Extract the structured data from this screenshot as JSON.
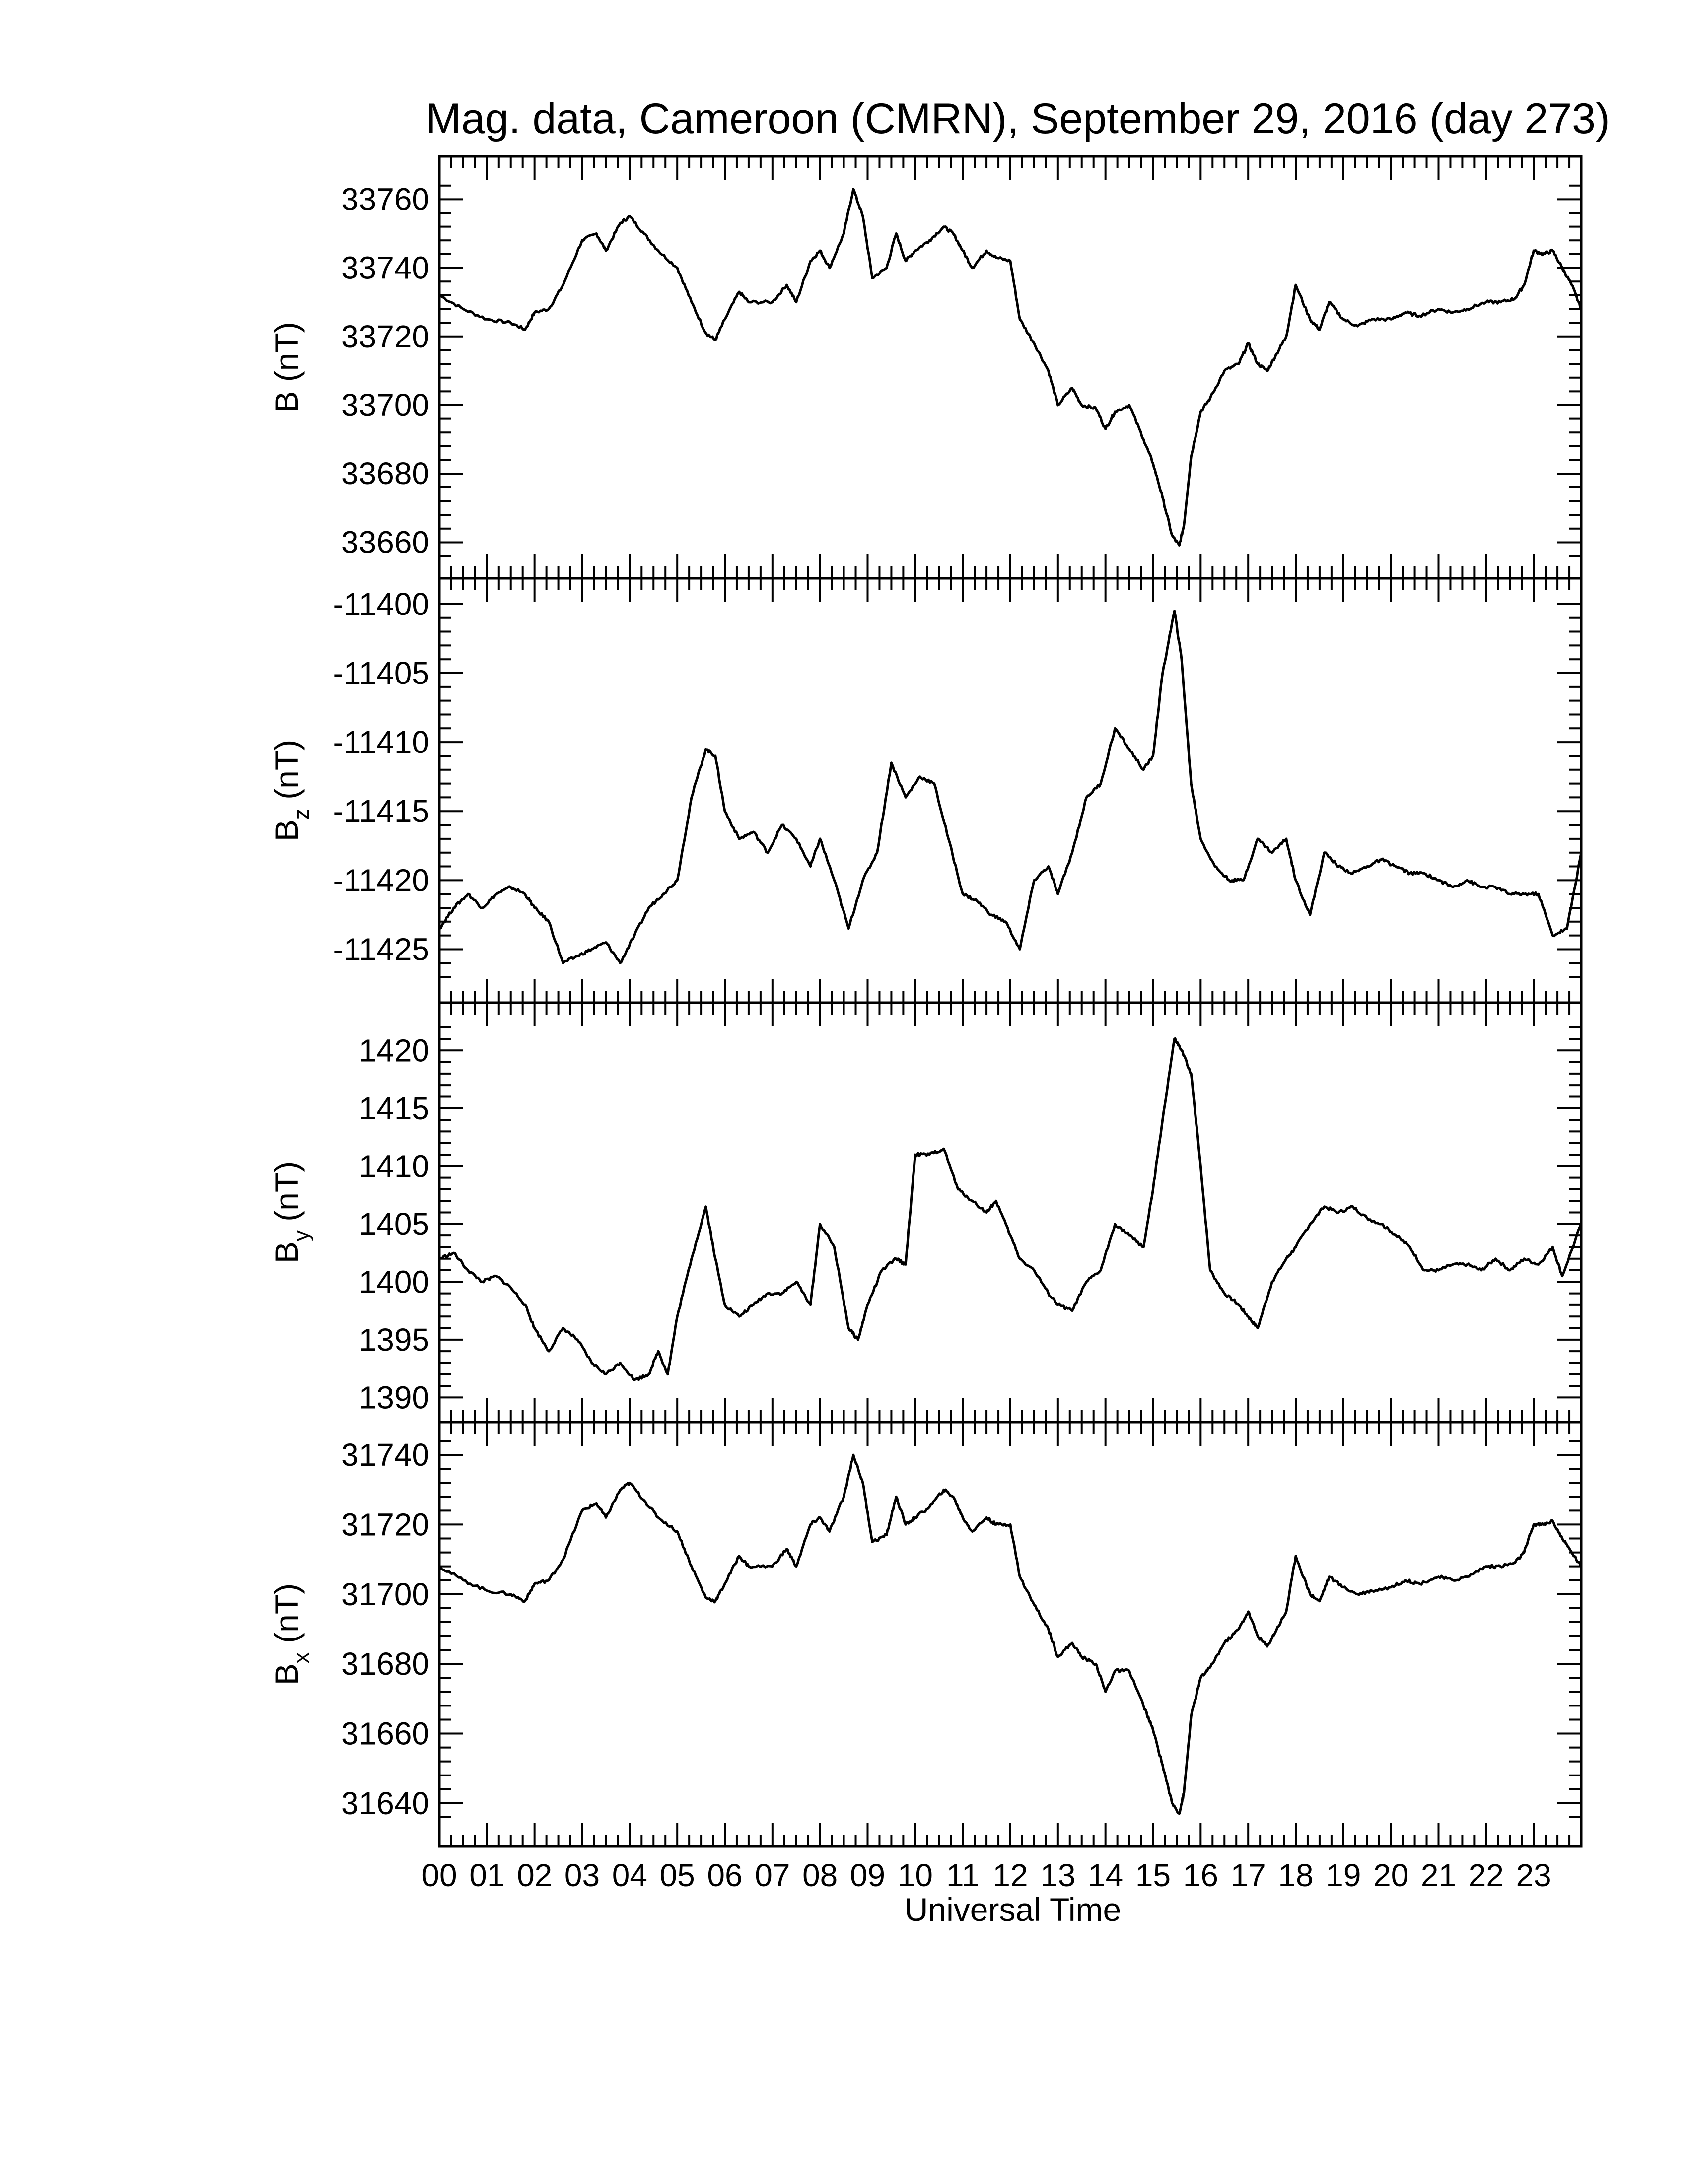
{
  "chart_data": {
    "type": "line",
    "title": "Mag. data, Cameroon (CMRN), September 29, 2016 (day 273)",
    "xlabel": "Universal Time",
    "x_unit": "hours UT",
    "xlim": [
      0,
      24
    ],
    "x_tick_labels": [
      "00",
      "01",
      "02",
      "03",
      "04",
      "05",
      "06",
      "07",
      "08",
      "09",
      "10",
      "11",
      "12",
      "13",
      "14",
      "15",
      "16",
      "17",
      "18",
      "19",
      "20",
      "21",
      "22",
      "23"
    ],
    "panels": [
      {
        "id": "B",
        "ylabel": "B (nT)",
        "ylabel_main": "B",
        "ylabel_sub": "",
        "ylabel_unit": "(nT)",
        "ylim": [
          33655,
          33767
        ],
        "yticks": [
          33660,
          33680,
          33700,
          33720,
          33740,
          33760
        ],
        "x": [
          0,
          0.5,
          1,
          1.5,
          1.8,
          2,
          2.3,
          2.6,
          3,
          3.3,
          3.5,
          3.8,
          4,
          4.3,
          4.6,
          5,
          5.3,
          5.6,
          5.8,
          6,
          6.3,
          6.5,
          7,
          7.3,
          7.5,
          7.8,
          8,
          8.2,
          8.5,
          8.7,
          8.9,
          9.1,
          9.4,
          9.6,
          9.8,
          10,
          10.3,
          10.6,
          10.8,
          11,
          11.2,
          11.5,
          11.7,
          12,
          12.2,
          12.5,
          12.8,
          13,
          13.3,
          13.5,
          13.8,
          14,
          14.2,
          14.5,
          14.8,
          15,
          15.2,
          15.4,
          15.55,
          15.65,
          15.8,
          16,
          16.2,
          16.5,
          16.8,
          17,
          17.2,
          17.4,
          17.6,
          17.8,
          18,
          18.3,
          18.5,
          18.7,
          19,
          19.3,
          19.6,
          20,
          20.3,
          20.6,
          21,
          21.3,
          21.6,
          22,
          22.3,
          22.6,
          22.8,
          23,
          23.2,
          23.4,
          23.6,
          23.8,
          24
        ],
        "y": [
          33732,
          33728,
          33725,
          33724,
          33722,
          33727,
          33728,
          33735,
          33748,
          33750,
          33745,
          33753,
          33755,
          33750,
          33745,
          33740,
          33730,
          33721,
          33719,
          33725,
          33733,
          33730,
          33730,
          33735,
          33730,
          33742,
          33745,
          33740,
          33750,
          33763,
          33755,
          33737,
          33740,
          33750,
          33742,
          33745,
          33748,
          33752,
          33750,
          33745,
          33740,
          33745,
          33743,
          33742,
          33725,
          33718,
          33710,
          33700,
          33705,
          33700,
          33699,
          33693,
          33698,
          33700,
          33690,
          33683,
          33673,
          33662,
          33659,
          33665,
          33685,
          33698,
          33702,
          33710,
          33712,
          33718,
          33712,
          33710,
          33715,
          33720,
          33735,
          33725,
          33722,
          33730,
          33725,
          33723,
          33725,
          33725,
          33727,
          33726,
          33728,
          33727,
          33728,
          33730,
          33730,
          33731,
          33735,
          33745,
          33744,
          33745,
          33740,
          33735,
          33728
        ]
      },
      {
        "id": "Bz",
        "ylabel": "Bz (nT)",
        "ylabel_main": "B",
        "ylabel_sub": "z",
        "ylabel_unit": "(nT)",
        "ylim": [
          -11427.5,
          -11399.5
        ],
        "yticks": [
          -11425,
          -11420,
          -11415,
          -11410,
          -11405,
          -11400
        ],
        "x": [
          0,
          0.3,
          0.6,
          0.9,
          1.2,
          1.5,
          1.8,
          2,
          2.3,
          2.6,
          2.9,
          3.2,
          3.5,
          3.8,
          4.1,
          4.4,
          4.7,
          5,
          5.3,
          5.6,
          5.8,
          6,
          6.3,
          6.6,
          6.9,
          7.2,
          7.5,
          7.8,
          8,
          8.3,
          8.6,
          8.9,
          9.2,
          9.5,
          9.8,
          10.1,
          10.4,
          10.7,
          11,
          11.3,
          11.6,
          11.9,
          12.2,
          12.5,
          12.8,
          13,
          13.3,
          13.6,
          13.9,
          14.2,
          14.5,
          14.8,
          15,
          15.2,
          15.45,
          15.6,
          15.8,
          16,
          16.3,
          16.6,
          16.9,
          17.2,
          17.5,
          17.8,
          18,
          18.3,
          18.6,
          18.9,
          19.2,
          19.5,
          19.8,
          20.1,
          20.4,
          20.7,
          21,
          21.3,
          21.6,
          21.9,
          22.2,
          22.5,
          22.8,
          23.1,
          23.4,
          23.7,
          24
        ],
        "y": [
          -11423.5,
          -11422,
          -11421,
          -11422,
          -11421,
          -11420.5,
          -11421,
          -11422,
          -11423,
          -11426,
          -11425.5,
          -11425,
          -11424.5,
          -11426,
          -11424,
          -11422,
          -11421,
          -11420,
          -11414,
          -11410.5,
          -11411,
          -11415,
          -11417,
          -11416.5,
          -11418,
          -11416,
          -11417,
          -11419,
          -11417,
          -11420,
          -11423.5,
          -11420,
          -11418,
          -11411.5,
          -11414,
          -11412.5,
          -11413,
          -11417,
          -11421,
          -11421.5,
          -11422.5,
          -11423,
          -11425,
          -11420,
          -11419,
          -11421,
          -11418,
          -11414,
          -11413,
          -11409,
          -11410.5,
          -11412,
          -11411,
          -11405,
          -11400.5,
          -11404,
          -11413,
          -11417,
          -11419,
          -11420,
          -11420,
          -11417,
          -11418,
          -11417,
          -11420,
          -11422.5,
          -11418,
          -11419,
          -11419.5,
          -11419,
          -11418.5,
          -11419,
          -11419.5,
          -11419.5,
          -11420,
          -11420.5,
          -11420,
          -11420.5,
          -11420.5,
          -11421,
          -11421,
          -11421,
          -11424,
          -11423.5,
          -11418
        ]
      },
      {
        "id": "By",
        "ylabel": "By (nT)",
        "ylabel_main": "B",
        "ylabel_sub": "y",
        "ylabel_unit": "(nT)",
        "ylim": [
          1389.5,
          1422.5
        ],
        "yticks": [
          1390,
          1395,
          1400,
          1405,
          1410,
          1415,
          1420
        ],
        "x": [
          0,
          0.3,
          0.6,
          0.9,
          1.2,
          1.5,
          1.8,
          2,
          2.3,
          2.6,
          2.9,
          3.2,
          3.5,
          3.8,
          4.1,
          4.4,
          4.6,
          4.8,
          5,
          5.3,
          5.6,
          5.8,
          6,
          6.3,
          6.6,
          6.9,
          7.2,
          7.5,
          7.8,
          8,
          8.3,
          8.6,
          8.8,
          9,
          9.3,
          9.6,
          9.8,
          10,
          10.3,
          10.6,
          10.9,
          11.2,
          11.5,
          11.7,
          12,
          12.2,
          12.5,
          12.8,
          13,
          13.3,
          13.6,
          13.9,
          14.2,
          14.5,
          14.8,
          15,
          15.2,
          15.45,
          15.6,
          15.8,
          16,
          16.2,
          16.5,
          16.8,
          17,
          17.2,
          17.5,
          17.8,
          18,
          18.3,
          18.6,
          18.9,
          19.2,
          19.5,
          19.8,
          20.1,
          20.4,
          20.7,
          21,
          21.3,
          21.6,
          21.9,
          22.2,
          22.5,
          22.8,
          23.1,
          23.4,
          23.6,
          24
        ],
        "y": [
          1402,
          1402.5,
          1401,
          1400,
          1400.5,
          1399.5,
          1398,
          1396,
          1394,
          1396,
          1395,
          1393,
          1392,
          1393,
          1391.5,
          1392,
          1394,
          1392,
          1397,
          1402,
          1406.5,
          1402,
          1398,
          1397,
          1398,
          1399,
          1399,
          1400,
          1398,
          1405,
          1403,
          1396,
          1395,
          1398,
          1401,
          1402,
          1401.5,
          1411,
          1411,
          1411.5,
          1408,
          1407,
          1406,
          1407,
          1404,
          1402,
          1401,
          1399,
          1398,
          1397.5,
          1400,
          1401,
          1405,
          1404,
          1403,
          1408,
          1414,
          1421,
          1420,
          1418,
          1410,
          1401,
          1399,
          1398,
          1397,
          1396,
          1400,
          1402,
          1403,
          1405,
          1406.5,
          1406,
          1406.5,
          1405.5,
          1405,
          1404,
          1403,
          1401,
          1401,
          1401.5,
          1401.5,
          1401,
          1402,
          1401,
          1402,
          1401.5,
          1403,
          1400.5,
          1405
        ]
      },
      {
        "id": "Bx",
        "ylabel": "Bx (nT)",
        "ylabel_main": "B",
        "ylabel_sub": "x",
        "ylabel_unit": "(nT)",
        "ylim": [
          31633,
          31744
        ],
        "yticks": [
          31640,
          31660,
          31680,
          31700,
          31720,
          31740
        ],
        "x": [
          0,
          0.5,
          1,
          1.5,
          1.8,
          2,
          2.3,
          2.6,
          3,
          3.3,
          3.5,
          3.8,
          4,
          4.3,
          4.6,
          5,
          5.3,
          5.6,
          5.8,
          6,
          6.3,
          6.5,
          7,
          7.3,
          7.5,
          7.8,
          8,
          8.2,
          8.5,
          8.7,
          8.9,
          9.1,
          9.4,
          9.6,
          9.8,
          10,
          10.3,
          10.6,
          10.8,
          11,
          11.2,
          11.5,
          11.7,
          12,
          12.2,
          12.5,
          12.8,
          13,
          13.3,
          13.5,
          13.8,
          14,
          14.2,
          14.5,
          14.8,
          15,
          15.2,
          15.4,
          15.55,
          15.65,
          15.8,
          16,
          16.2,
          16.5,
          16.8,
          17,
          17.2,
          17.4,
          17.6,
          17.8,
          18,
          18.3,
          18.5,
          18.7,
          19,
          19.3,
          19.6,
          20,
          20.3,
          20.6,
          21,
          21.3,
          21.6,
          22,
          22.3,
          22.6,
          22.8,
          23,
          23.2,
          23.4,
          23.6,
          23.8,
          24
        ],
        "y": [
          31708,
          31704,
          31701,
          31700,
          31698,
          31703,
          31704,
          31710,
          31724,
          31726,
          31722,
          31730,
          31732,
          31727,
          31722,
          31718,
          31708,
          31699,
          31698,
          31703,
          31711,
          31708,
          31708,
          31713,
          31708,
          31720,
          31722,
          31718,
          31728,
          31740,
          31732,
          31715,
          31717,
          31728,
          31720,
          31722,
          31725,
          31730,
          31728,
          31722,
          31718,
          31722,
          31720,
          31720,
          31705,
          31697,
          31690,
          31682,
          31686,
          31682,
          31680,
          31672,
          31678,
          31678,
          31668,
          31661,
          31651,
          31640,
          31637,
          31643,
          31665,
          31676,
          31679,
          31686,
          31690,
          31695,
          31688,
          31685,
          31690,
          31695,
          31711,
          31700,
          31698,
          31705,
          31702,
          31700,
          31701,
          31702,
          31704,
          31703,
          31705,
          31704,
          31705,
          31708,
          31708,
          31709,
          31712,
          31720,
          31720,
          31721,
          31716,
          31712,
          31708
        ]
      }
    ]
  }
}
